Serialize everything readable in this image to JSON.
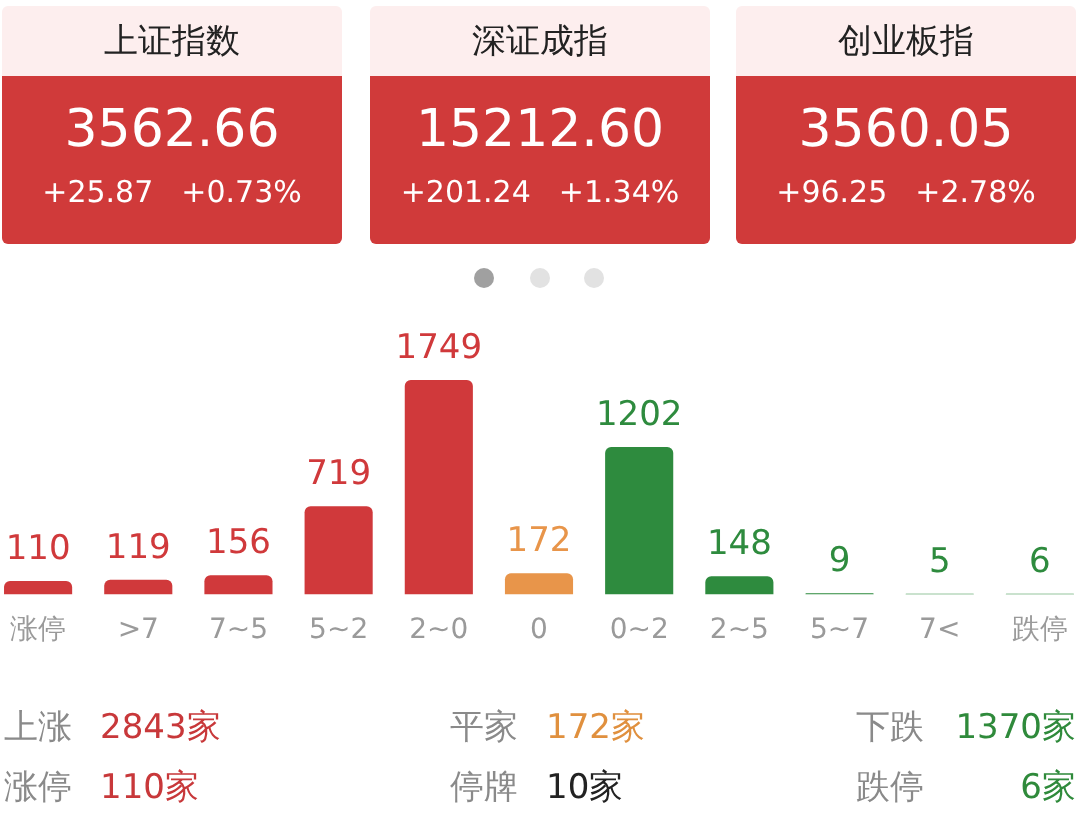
{
  "chart_data": [
    {
      "type": "other",
      "title": "上证指数",
      "annotations": [
        "3562.66",
        "+25.87",
        "+0.73%"
      ]
    },
    {
      "type": "other",
      "title": "深证成指",
      "annotations": [
        "15212.60",
        "+201.24",
        "+1.34%"
      ]
    },
    {
      "type": "other",
      "title": "创业板指",
      "annotations": [
        "3560.05",
        "+96.25",
        "+2.78%"
      ]
    },
    {
      "type": "bar",
      "categories": [
        "涨停",
        ">7",
        "7~5",
        "5~2",
        "2~0",
        "0",
        "0~2",
        "2~5",
        "5~7",
        "7<",
        "跌停"
      ],
      "values": [
        110,
        119,
        156,
        719,
        1749,
        172,
        1202,
        148,
        9,
        5,
        6
      ],
      "colors": [
        "#d0393b",
        "#d0393b",
        "#d0393b",
        "#d0393b",
        "#d0393b",
        "#e8954a",
        "#2e8b3e",
        "#2e8b3e",
        "#2e8b3e",
        "#2e8b3e",
        "#2e8b3e"
      ],
      "data_labels": true,
      "tick_labels": "x",
      "legend": false,
      "annotations": [
        "上涨",
        "2843家",
        "平家",
        "172家",
        "下跌",
        "1370家",
        "涨停",
        "110家",
        "停牌",
        "10家",
        "跌停",
        "6家"
      ]
    }
  ]
}
